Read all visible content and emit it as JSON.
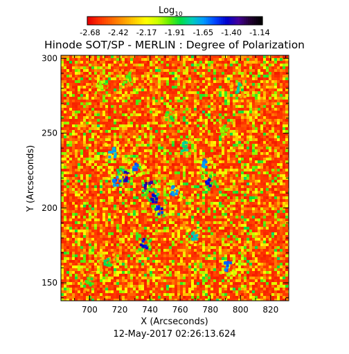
{
  "chart_data": {
    "type": "heatmap",
    "title": "Hinode SOT/SP - MERLIN : Degree of Polarization",
    "colorbar": {
      "label": "Log",
      "label_sub": "10",
      "ticks": [
        "-2.68",
        "-2.42",
        "-2.17",
        "-1.91",
        "-1.65",
        "-1.40",
        "-1.14"
      ],
      "range": [
        -2.68,
        -1.14
      ],
      "colors": [
        "#e60000",
        "#ff3300",
        "#ff6600",
        "#ff9900",
        "#ffcc00",
        "#ffff00",
        "#ccff00",
        "#66ee00",
        "#00dd44",
        "#00ccbb",
        "#0099ff",
        "#0044ff",
        "#0000cc",
        "#440099",
        "#220033",
        "#000000"
      ]
    },
    "xlabel": "X (Arcseconds)",
    "ylabel": "Y (Arcseconds)",
    "xlim": [
      681,
      832
    ],
    "ylim": [
      138,
      302
    ],
    "x_ticks": [
      700,
      720,
      740,
      760,
      780,
      800,
      820
    ],
    "y_ticks": [
      150,
      200,
      250,
      300
    ],
    "features": [
      {
        "x": 738,
        "y": 215,
        "level": -1.3
      },
      {
        "x": 742,
        "y": 208,
        "level": -1.35
      },
      {
        "x": 745,
        "y": 200,
        "level": -1.45
      },
      {
        "x": 723,
        "y": 222,
        "level": -1.32
      },
      {
        "x": 730,
        "y": 228,
        "level": -1.55
      },
      {
        "x": 717,
        "y": 219,
        "level": -1.55
      },
      {
        "x": 735,
        "y": 177,
        "level": -1.4
      },
      {
        "x": 778,
        "y": 219,
        "level": -1.4
      },
      {
        "x": 776,
        "y": 230,
        "level": -1.6
      },
      {
        "x": 762,
        "y": 242,
        "level": -1.75
      },
      {
        "x": 755,
        "y": 212,
        "level": -1.6
      },
      {
        "x": 768,
        "y": 182,
        "level": -1.7
      },
      {
        "x": 791,
        "y": 162,
        "level": -1.55
      },
      {
        "x": 711,
        "y": 164,
        "level": -1.8
      },
      {
        "x": 699,
        "y": 152,
        "level": -1.85
      },
      {
        "x": 752,
        "y": 262,
        "level": -1.85
      },
      {
        "x": 797,
        "y": 281,
        "level": -1.75
      },
      {
        "x": 714,
        "y": 238,
        "level": -1.65
      },
      {
        "x": 788,
        "y": 252,
        "level": -1.95
      },
      {
        "x": 724,
        "y": 288,
        "level": -1.9
      },
      {
        "x": 706,
        "y": 282,
        "level": -1.95
      }
    ],
    "background_level": -2.6
  },
  "footer": {
    "date": "12-May-2017 02:26:13.624"
  }
}
